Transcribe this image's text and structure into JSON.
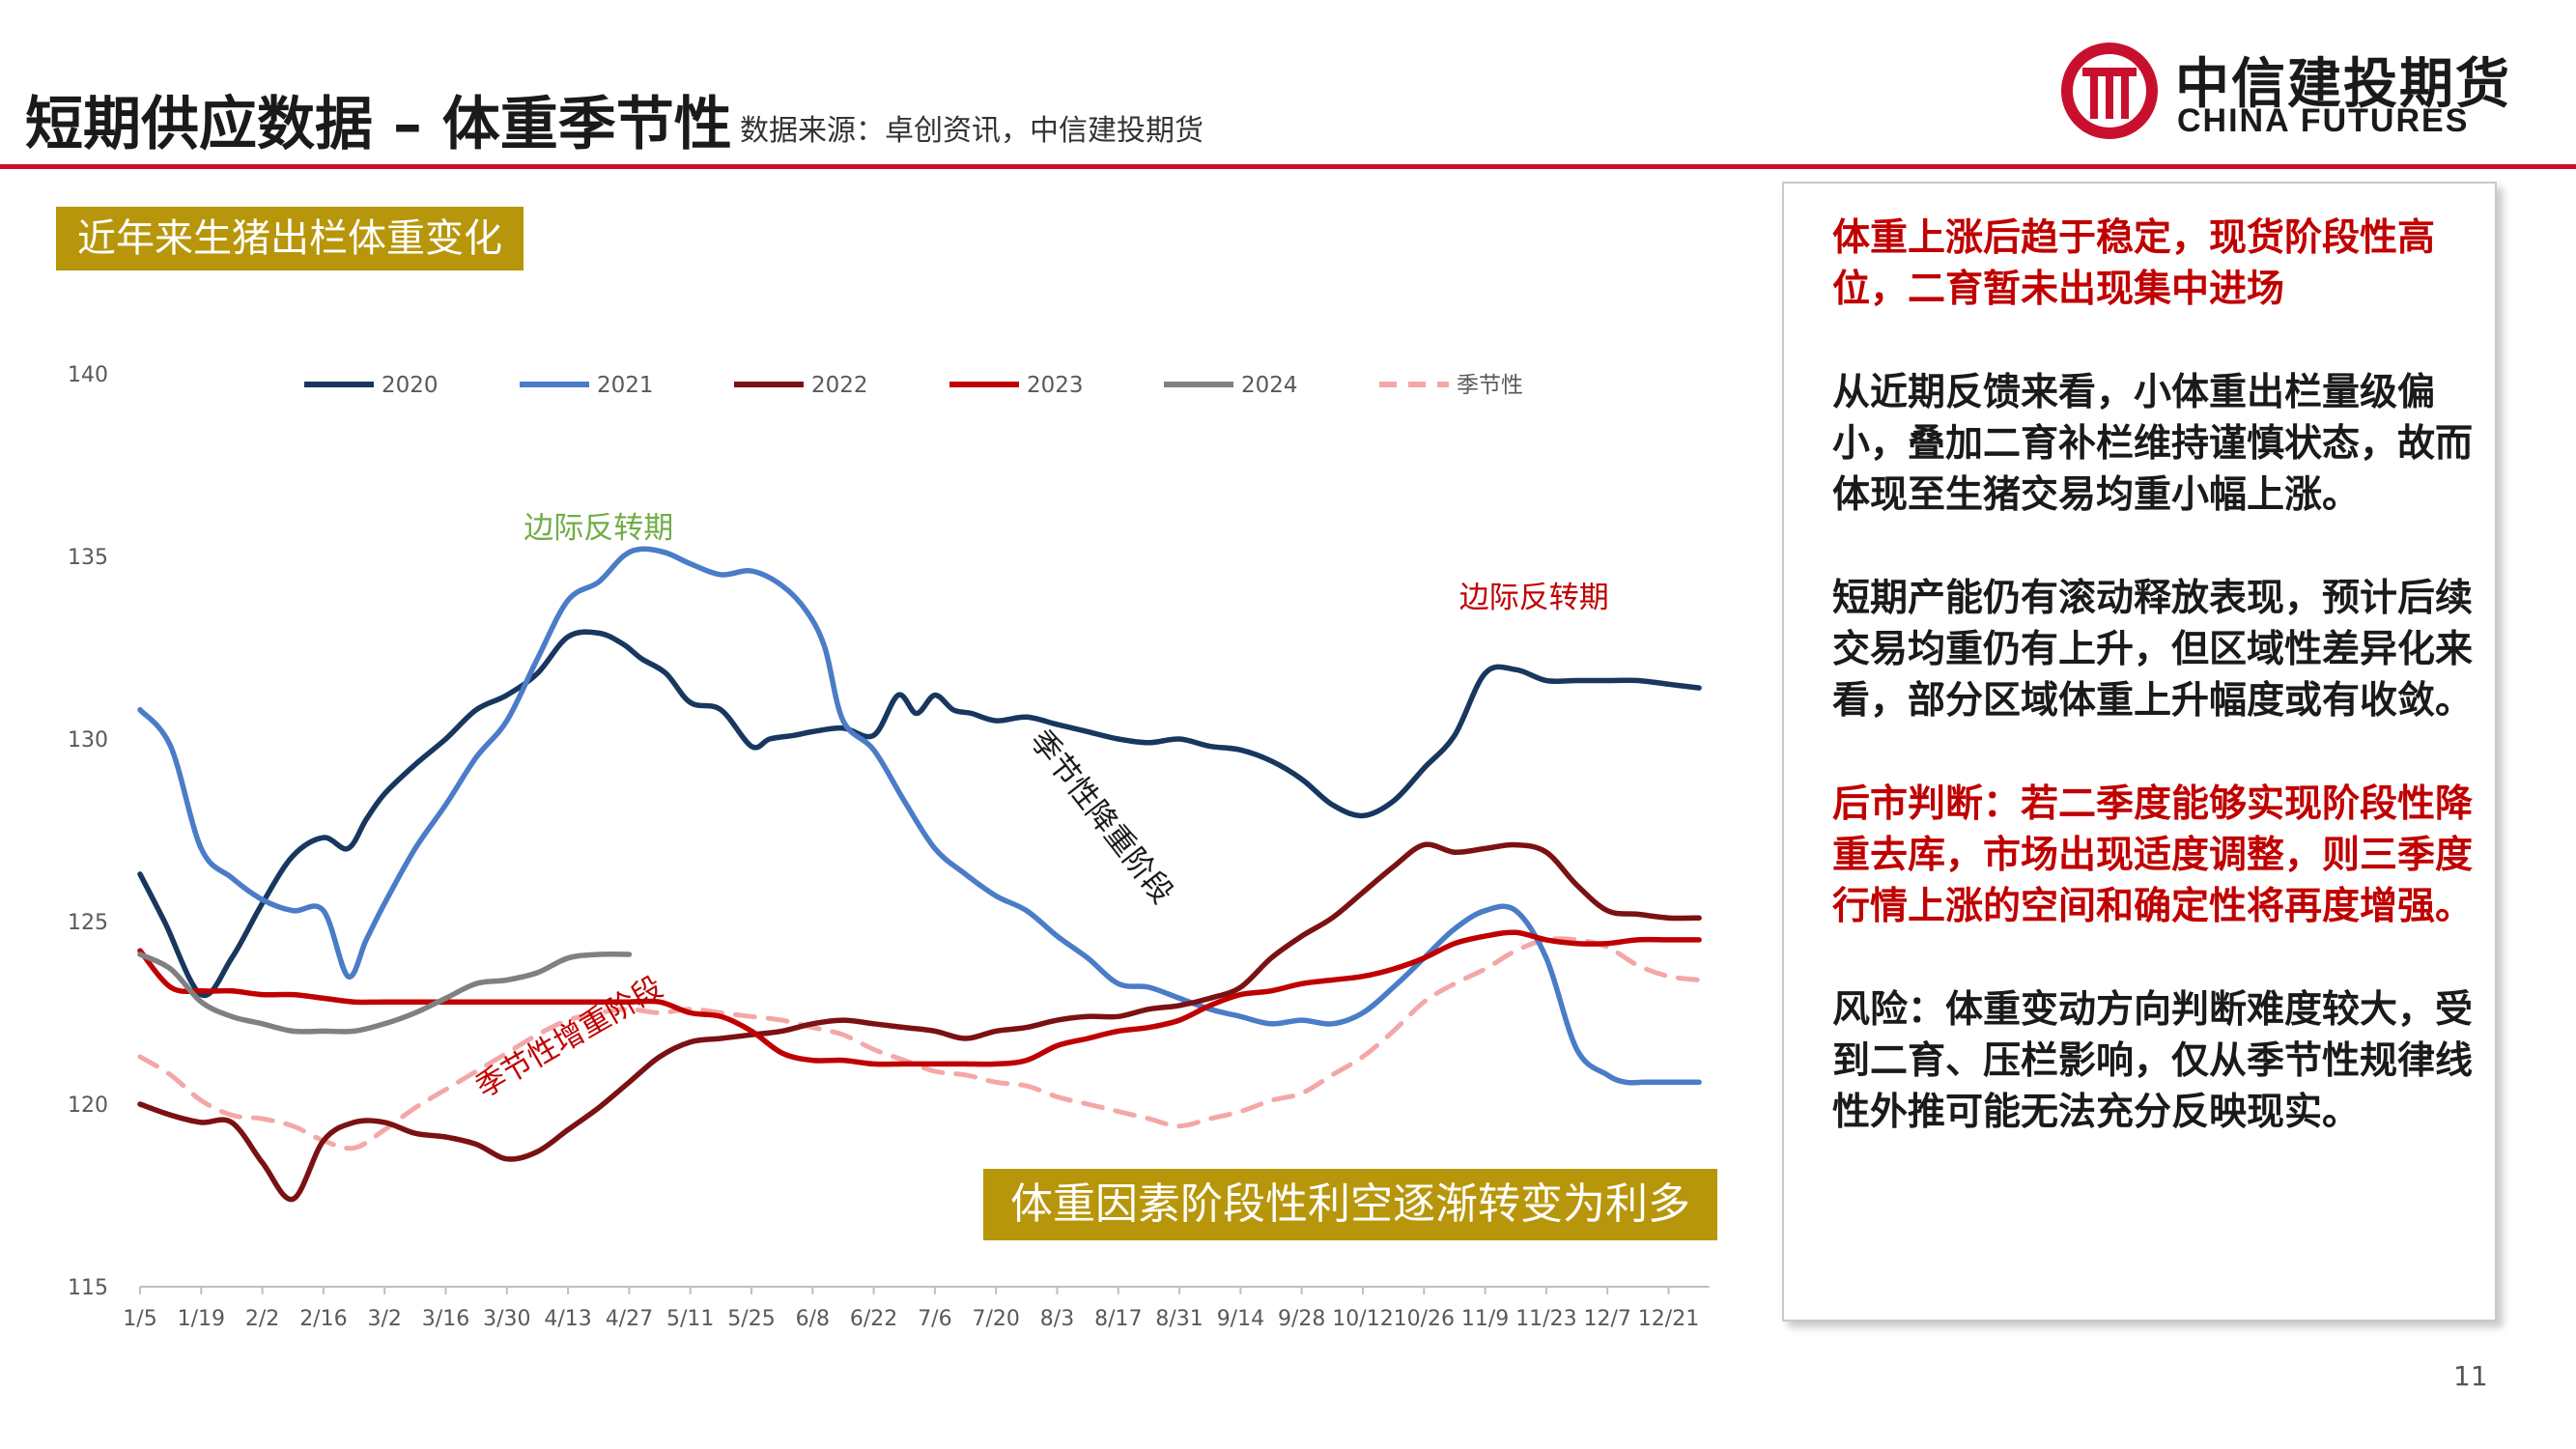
{
  "header": {
    "title": "短期供应数据 – 体重季节性",
    "source": "数据来源：卓创资讯，中信建投期货",
    "logo_cn": "中信建投期货",
    "logo_en": "CHINA FUTURES"
  },
  "chart_tag": "近年来生猪出栏体重变化",
  "callout": "体重因素阶段性利空逐渐转变为利多",
  "panel": {
    "p1": "体重上涨后趋于稳定，现货阶段性高位，二育暂未出现集中进场",
    "p2": "从近期反馈来看，小体重出栏量级偏小，叠加二育补栏维持谨慎状态，故而体现至生猪交易均重小幅上涨。",
    "p3": "短期产能仍有滚动释放表现，预计后续交易均重仍有上升，但区域性差异化来看，部分区域体重上升幅度或有收敛。",
    "p4": "后市判断：若二季度能够实现阶段性降重去库，市场出现适度调整，则三季度行情上涨的空间和确定性将再度增强。",
    "p5": "风险：体重变动方向判断难度较大，受到二育、压栏影响，仅从季节性规律线性外推可能无法充分反映现实。"
  },
  "page_number": "11",
  "colors": {
    "brand_red": "#c8102e",
    "gold": "#b8960b",
    "s2020": "#17375e",
    "s2021": "#4a7cc7",
    "s2022": "#7b1113",
    "s2023": "#c00000",
    "s2024": "#808080",
    "seasonal": "#f4a7a7"
  },
  "chart_data": {
    "type": "line",
    "title": "",
    "xlabel": "",
    "ylabel": "",
    "ylim": [
      115,
      140
    ],
    "yticks": [
      "115",
      "120",
      "125",
      "130",
      "135",
      "140"
    ],
    "grid": false,
    "legend_position": "top",
    "categories": [
      "1/5",
      "1/19",
      "2/2",
      "2/16",
      "3/2",
      "3/16",
      "3/30",
      "4/13",
      "4/27",
      "5/11",
      "5/25",
      "6/8",
      "6/22",
      "7/6",
      "7/20",
      "8/3",
      "8/17",
      "8/31",
      "9/14",
      "9/28",
      "10/12",
      "10/26",
      "11/9",
      "11/23",
      "12/7",
      "12/21"
    ],
    "series": [
      {
        "name": "2020",
        "style": "solid",
        "color": "#17375e",
        "x": [
          0,
          0.4,
          1,
          1.5,
          2,
          2.5,
          3,
          3.4,
          3.7,
          4,
          4.5,
          5,
          5.5,
          6,
          6.5,
          7,
          7.5,
          7.9,
          8.2,
          8.6,
          9,
          9.5,
          10,
          10.3,
          10.7,
          11,
          11.5,
          12,
          12.4,
          12.7,
          13,
          13.3,
          13.6,
          14,
          14.5,
          15,
          15.5,
          16,
          16.5,
          17,
          17.5,
          18,
          18.5,
          19,
          19.5,
          20,
          20.5,
          21,
          21.5,
          22,
          22.5,
          23,
          23.5,
          24,
          24.5,
          25,
          25.5
        ],
        "y": [
          126.3,
          125,
          123,
          124,
          125.5,
          126.8,
          127.3,
          127,
          127.8,
          128.5,
          129.3,
          130,
          130.8,
          131.2,
          131.8,
          132.8,
          132.9,
          132.6,
          132.2,
          131.8,
          131,
          130.8,
          129.8,
          130,
          130.1,
          130.2,
          130.3,
          130.1,
          131.2,
          130.7,
          131.2,
          130.8,
          130.7,
          130.5,
          130.6,
          130.4,
          130.2,
          130,
          129.9,
          130,
          129.8,
          129.7,
          129.4,
          128.9,
          128.2,
          127.9,
          128.3,
          129.2,
          130.1,
          131.8,
          131.9,
          131.6,
          131.6,
          131.6,
          131.6,
          131.5,
          131.4
        ]
      },
      {
        "name": "2021",
        "style": "solid",
        "color": "#4a7cc7",
        "x": [
          0,
          0.5,
          1,
          1.5,
          2,
          2.5,
          3,
          3.4,
          3.7,
          4,
          4.5,
          5,
          5.5,
          6,
          6.5,
          7,
          7.5,
          7.9,
          8.2,
          8.6,
          9,
          9.5,
          10,
          10.5,
          10.9,
          11.2,
          11.5,
          12,
          12.5,
          13,
          13.5,
          14,
          14.5,
          15,
          15.5,
          16,
          16.5,
          17,
          17.5,
          18,
          18.5,
          19,
          19.5,
          20,
          20.5,
          21,
          21.5,
          22,
          22.5,
          23,
          23.5,
          24,
          24.3,
          24.6,
          25,
          25.5
        ],
        "y": [
          130.8,
          129.8,
          127,
          126.2,
          125.6,
          125.3,
          125.3,
          123.5,
          124.5,
          125.5,
          127,
          128.2,
          129.5,
          130.5,
          132.2,
          133.8,
          134.3,
          135,
          135.2,
          135.1,
          134.8,
          134.5,
          134.6,
          134.2,
          133.5,
          132.5,
          130.5,
          129.7,
          128.3,
          127,
          126.3,
          125.7,
          125.3,
          124.6,
          124,
          123.3,
          123.2,
          122.9,
          122.6,
          122.4,
          122.2,
          122.3,
          122.2,
          122.5,
          123.2,
          124,
          124.8,
          125.3,
          125.3,
          124,
          121.5,
          120.8,
          120.6,
          120.6,
          120.6,
          120.6
        ]
      },
      {
        "name": "2022",
        "style": "solid",
        "color": "#7b1113",
        "x": [
          0,
          0.5,
          1,
          1.5,
          2,
          2.5,
          3,
          3.5,
          4,
          4.5,
          5,
          5.5,
          6,
          6.5,
          7,
          7.5,
          8,
          8.5,
          9,
          9.5,
          10,
          10.5,
          11,
          11.5,
          12,
          12.5,
          13,
          13.5,
          14,
          14.5,
          15,
          15.5,
          16,
          16.5,
          17,
          17.5,
          18,
          18.5,
          19,
          19.5,
          20,
          20.5,
          21,
          21.5,
          22,
          22.5,
          23,
          23.5,
          24,
          24.5,
          25,
          25.5
        ],
        "y": [
          120,
          119.7,
          119.5,
          119.5,
          118.4,
          117.4,
          119,
          119.5,
          119.5,
          119.2,
          119.1,
          118.9,
          118.5,
          118.7,
          119.3,
          119.9,
          120.6,
          121.3,
          121.7,
          121.8,
          121.9,
          122,
          122.2,
          122.3,
          122.2,
          122.1,
          122,
          121.8,
          122,
          122.1,
          122.3,
          122.4,
          122.4,
          122.6,
          122.7,
          122.9,
          123.2,
          124,
          124.6,
          125.1,
          125.8,
          126.5,
          127.1,
          126.9,
          127,
          127.1,
          126.9,
          126,
          125.3,
          125.2,
          125.1,
          125.1
        ]
      },
      {
        "name": "2023",
        "style": "solid",
        "color": "#c00000",
        "x": [
          0,
          0.5,
          1,
          1.5,
          2,
          2.5,
          3,
          3.5,
          4,
          4.5,
          5,
          5.5,
          6,
          6.5,
          7,
          7.5,
          8,
          8.5,
          9,
          9.5,
          10,
          10.5,
          11,
          11.5,
          12,
          12.5,
          13,
          13.5,
          14,
          14.5,
          15,
          15.5,
          16,
          16.5,
          17,
          17.5,
          18,
          18.5,
          19,
          19.5,
          20,
          20.5,
          21,
          21.5,
          22,
          22.5,
          23,
          23.5,
          24,
          24.5,
          25,
          25.5
        ],
        "y": [
          124.2,
          123.2,
          123.1,
          123.1,
          123,
          123,
          122.9,
          122.8,
          122.8,
          122.8,
          122.8,
          122.8,
          122.8,
          122.8,
          122.8,
          122.8,
          122.8,
          122.8,
          122.5,
          122.4,
          122,
          121.4,
          121.2,
          121.2,
          121.1,
          121.1,
          121.1,
          121.1,
          121.1,
          121.2,
          121.6,
          121.8,
          122,
          122.1,
          122.3,
          122.7,
          123,
          123.1,
          123.3,
          123.4,
          123.5,
          123.7,
          124,
          124.4,
          124.6,
          124.7,
          124.5,
          124.4,
          124.4,
          124.5,
          124.5,
          124.5
        ]
      },
      {
        "name": "2024",
        "style": "solid",
        "color": "#808080",
        "x": [
          0,
          0.5,
          1,
          1.5,
          2,
          2.5,
          3,
          3.5,
          4,
          4.5,
          5,
          5.5,
          6,
          6.5,
          7,
          7.5,
          8
        ],
        "y": [
          124.1,
          123.7,
          122.8,
          122.4,
          122.2,
          122,
          122,
          122,
          122.2,
          122.5,
          122.9,
          123.3,
          123.4,
          123.6,
          124,
          124.1,
          124.1
        ]
      },
      {
        "name": "季节性",
        "style": "dashed",
        "color": "#f4a7a7",
        "x": [
          0,
          0.5,
          1,
          1.5,
          2,
          2.5,
          3,
          3.5,
          4,
          4.5,
          5,
          5.5,
          6,
          6.5,
          7,
          7.5,
          8,
          8.5,
          9,
          9.5,
          10,
          10.5,
          11,
          11.5,
          12,
          12.5,
          13,
          13.5,
          14,
          14.5,
          15,
          15.5,
          16,
          16.5,
          17,
          17.5,
          18,
          18.5,
          19,
          19.5,
          20,
          20.5,
          21,
          21.5,
          22,
          22.5,
          23,
          23.5,
          24,
          24.5,
          25,
          25.5
        ],
        "y": [
          121.3,
          120.8,
          120.1,
          119.7,
          119.6,
          119.4,
          119,
          118.8,
          119.3,
          119.9,
          120.4,
          120.9,
          121.4,
          121.9,
          122.3,
          122.5,
          122.6,
          122.5,
          122.6,
          122.5,
          122.4,
          122.3,
          122.1,
          121.9,
          121.5,
          121.2,
          120.9,
          120.8,
          120.6,
          120.5,
          120.2,
          120,
          119.8,
          119.6,
          119.4,
          119.6,
          119.8,
          120.1,
          120.3,
          120.8,
          121.3,
          122,
          122.8,
          123.3,
          123.7,
          124.2,
          124.5,
          124.5,
          124.3,
          123.8,
          123.5,
          123.4
        ]
      }
    ],
    "annotations": [
      {
        "text": "边际反转期",
        "color": "#70ad47",
        "x": 7.5,
        "y": 135.5
      },
      {
        "text": "边际反转期",
        "color": "#c00000",
        "x": 22.8,
        "y": 133.6
      },
      {
        "text": "季节性降重阶段",
        "color": "#1a1a1a",
        "x": 15.6,
        "y": 127.7
      },
      {
        "text": "季节性增重阶段",
        "color": "#c00000",
        "x": 7.1,
        "y": 121.6
      }
    ]
  }
}
